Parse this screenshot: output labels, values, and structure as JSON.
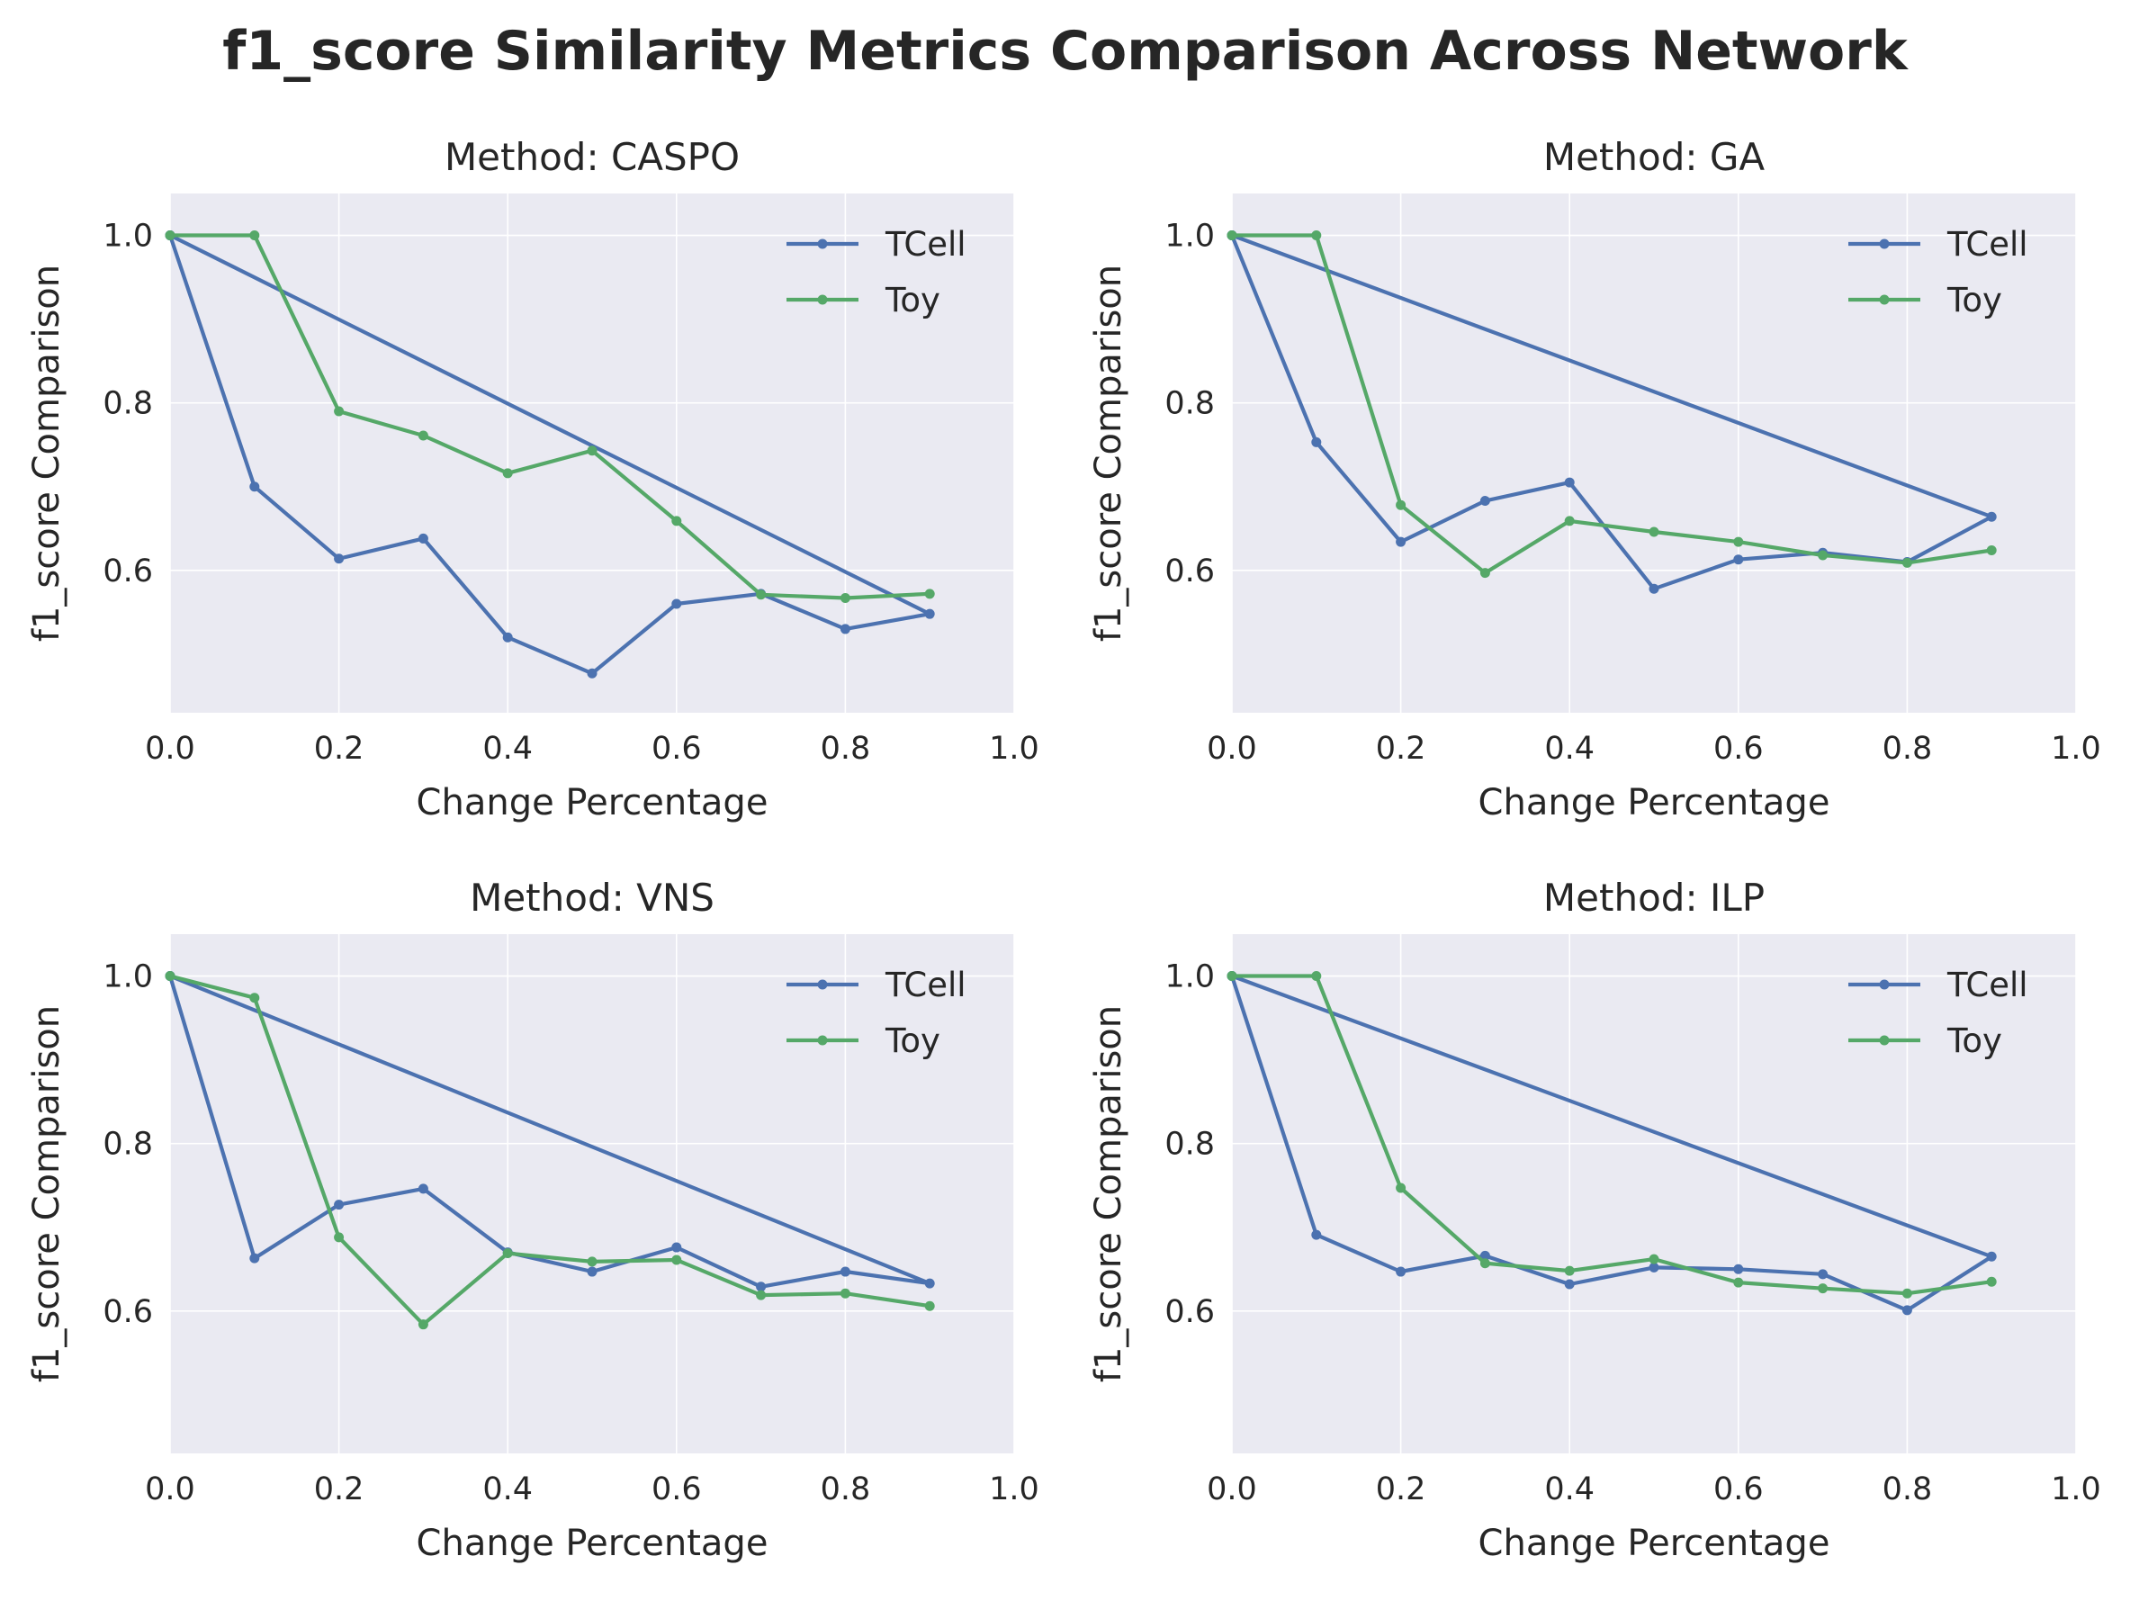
{
  "figure": {
    "suptitle": "f1_score Similarity Metrics Comparison Across Network"
  },
  "style": {
    "axes_bg": "#EAEAF2",
    "grid_color": "#FFFFFF",
    "text_color": "#262626",
    "series_colors": {
      "TCell": "#4C72B0",
      "Toy": "#55A868"
    }
  },
  "chart_data": [
    {
      "type": "line",
      "title": "Method: CASPO",
      "xlabel": "Change Percentage",
      "ylabel": "f1_score Comparison",
      "xlim": [
        0.0,
        1.0
      ],
      "ylim": [
        0.43,
        1.05
      ],
      "xticks": [
        "0.0",
        "0.2",
        "0.4",
        "0.6",
        "0.8",
        "1.0"
      ],
      "yticks": [
        "0.6",
        "0.8",
        "1.0"
      ],
      "grid": true,
      "legend": "top-right",
      "series": [
        {
          "name": "TCell",
          "color": "#4C72B0",
          "x": [
            0.0,
            0.1,
            0.2,
            0.3,
            0.4,
            0.5,
            0.6,
            0.7,
            0.8,
            0.9,
            0.0
          ],
          "y": [
            1.0,
            0.7,
            0.614,
            0.638,
            0.52,
            0.477,
            0.56,
            0.572,
            0.53,
            0.548,
            1.0
          ]
        },
        {
          "name": "Toy",
          "color": "#55A868",
          "x": [
            0.0,
            0.1,
            0.2,
            0.3,
            0.4,
            0.5,
            0.6,
            0.7,
            0.8,
            0.9
          ],
          "y": [
            1.0,
            1.0,
            0.79,
            0.761,
            0.716,
            0.743,
            0.659,
            0.571,
            0.567,
            0.572
          ]
        }
      ]
    },
    {
      "type": "line",
      "title": "Method: GA",
      "xlabel": "Change Percentage",
      "ylabel": "f1_score Comparison",
      "xlim": [
        0.0,
        1.0
      ],
      "ylim": [
        0.43,
        1.05
      ],
      "xticks": [
        "0.0",
        "0.2",
        "0.4",
        "0.6",
        "0.8",
        "1.0"
      ],
      "yticks": [
        "0.6",
        "0.8",
        "1.0"
      ],
      "grid": true,
      "legend": "top-right",
      "series": [
        {
          "name": "TCell",
          "color": "#4C72B0",
          "x": [
            0.0,
            0.1,
            0.2,
            0.3,
            0.4,
            0.5,
            0.6,
            0.7,
            0.8,
            0.9,
            0.0
          ],
          "y": [
            1.0,
            0.753,
            0.634,
            0.683,
            0.705,
            0.578,
            0.613,
            0.621,
            0.61,
            0.664,
            1.0
          ]
        },
        {
          "name": "Toy",
          "color": "#55A868",
          "x": [
            0.0,
            0.1,
            0.2,
            0.3,
            0.4,
            0.5,
            0.6,
            0.7,
            0.8,
            0.9
          ],
          "y": [
            1.0,
            1.0,
            0.678,
            0.597,
            0.659,
            0.646,
            0.634,
            0.618,
            0.609,
            0.624
          ]
        }
      ]
    },
    {
      "type": "line",
      "title": "Method: VNS",
      "xlabel": "Change Percentage",
      "ylabel": "f1_score Comparison",
      "xlim": [
        0.0,
        1.0
      ],
      "ylim": [
        0.43,
        1.05
      ],
      "xticks": [
        "0.0",
        "0.2",
        "0.4",
        "0.6",
        "0.8",
        "1.0"
      ],
      "yticks": [
        "0.6",
        "0.8",
        "1.0"
      ],
      "grid": true,
      "legend": "top-right",
      "series": [
        {
          "name": "TCell",
          "color": "#4C72B0",
          "x": [
            0.0,
            0.1,
            0.2,
            0.3,
            0.4,
            0.5,
            0.6,
            0.7,
            0.8,
            0.9,
            0.0
          ],
          "y": [
            1.0,
            0.663,
            0.727,
            0.746,
            0.67,
            0.647,
            0.676,
            0.629,
            0.647,
            0.633,
            1.0
          ]
        },
        {
          "name": "Toy",
          "color": "#55A868",
          "x": [
            0.0,
            0.1,
            0.2,
            0.3,
            0.4,
            0.5,
            0.6,
            0.7,
            0.8,
            0.9
          ],
          "y": [
            1.0,
            0.974,
            0.688,
            0.584,
            0.669,
            0.659,
            0.661,
            0.619,
            0.621,
            0.606
          ]
        }
      ]
    },
    {
      "type": "line",
      "title": "Method: ILP",
      "xlabel": "Change Percentage",
      "ylabel": "f1_score Comparison",
      "xlim": [
        0.0,
        1.0
      ],
      "ylim": [
        0.43,
        1.05
      ],
      "xticks": [
        "0.0",
        "0.2",
        "0.4",
        "0.6",
        "0.8",
        "1.0"
      ],
      "yticks": [
        "0.6",
        "0.8",
        "1.0"
      ],
      "grid": true,
      "legend": "top-right",
      "series": [
        {
          "name": "TCell",
          "color": "#4C72B0",
          "x": [
            0.0,
            0.1,
            0.2,
            0.3,
            0.4,
            0.5,
            0.6,
            0.7,
            0.8,
            0.9,
            0.0
          ],
          "y": [
            1.0,
            0.691,
            0.647,
            0.666,
            0.632,
            0.652,
            0.65,
            0.644,
            0.601,
            0.665,
            1.0
          ]
        },
        {
          "name": "Toy",
          "color": "#55A868",
          "x": [
            0.0,
            0.1,
            0.2,
            0.3,
            0.4,
            0.5,
            0.6,
            0.7,
            0.8,
            0.9
          ],
          "y": [
            1.0,
            1.0,
            0.747,
            0.657,
            0.648,
            0.662,
            0.634,
            0.627,
            0.621,
            0.635
          ]
        }
      ]
    }
  ]
}
